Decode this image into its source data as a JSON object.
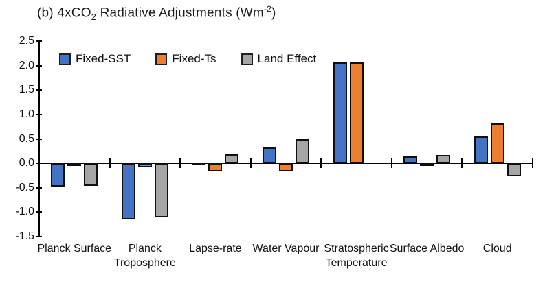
{
  "title": {
    "prefix": "(b) 4xCO",
    "subscript": "2",
    "middle": " Radiative Adjustments (Wm",
    "superscript": "-2",
    "suffix": ")"
  },
  "chart_data": {
    "type": "bar",
    "title": "(b) 4xCO2 Radiative Adjustments (Wm-2)",
    "categories": [
      "Planck Surface",
      "Planck Troposphere",
      "Lapse-rate",
      "Water Vapour",
      "Stratospheric Temperature",
      "Surface Albedo",
      "Cloud"
    ],
    "series": [
      {
        "name": "Fixed-SST",
        "color": "#4472C4",
        "values": [
          -0.47,
          -1.15,
          0.02,
          0.33,
          2.06,
          0.14,
          0.55
        ]
      },
      {
        "name": "Fixed-Ts",
        "color": "#ED7D31",
        "values": [
          -0.04,
          -0.08,
          -0.17,
          -0.17,
          2.07,
          -0.02,
          0.81
        ]
      },
      {
        "name": "Land Effect",
        "color": "#A5A5A5",
        "values": [
          -0.46,
          -1.1,
          0.19,
          0.5,
          0.0,
          0.17,
          -0.27
        ]
      }
    ],
    "ylabel": "",
    "xlabel": "",
    "ylim": [
      -1.5,
      2.5
    ],
    "yticks": [
      2.5,
      2.0,
      1.5,
      1.0,
      0.5,
      0.0,
      -0.5,
      -1.0,
      -1.5
    ],
    "grid": false,
    "legend_position": "top-left-inside",
    "bar_border_color": "#0f0f0f",
    "axis_color": "#000000",
    "background_color": "#ffffff"
  }
}
